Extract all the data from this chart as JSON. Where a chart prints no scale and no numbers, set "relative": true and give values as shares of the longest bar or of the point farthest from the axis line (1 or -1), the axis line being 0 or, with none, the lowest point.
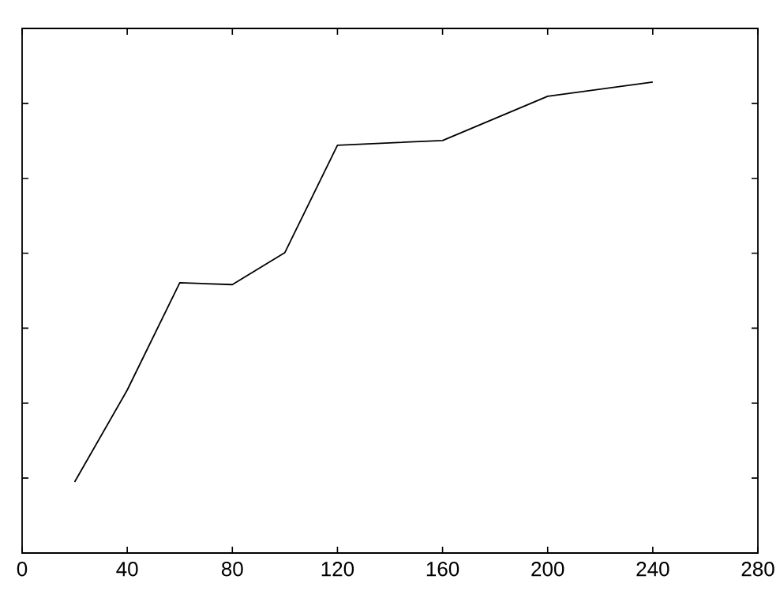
{
  "chart_data": {
    "type": "line",
    "relative": true,
    "x": [
      20,
      40,
      60,
      80,
      100,
      120,
      160,
      200,
      240
    ],
    "series": [
      {
        "color": "#000000",
        "values": [
          0.151,
          0.346,
          0.574,
          0.57,
          0.638,
          0.866,
          0.876,
          0.97,
          1.0
        ]
      }
    ],
    "xlim": [
      0,
      280
    ],
    "xticks": [
      0,
      40,
      80,
      120,
      160,
      200,
      240,
      280
    ],
    "tick_labels": "x",
    "grid": false,
    "marker": "none",
    "line_style": "solid"
  }
}
